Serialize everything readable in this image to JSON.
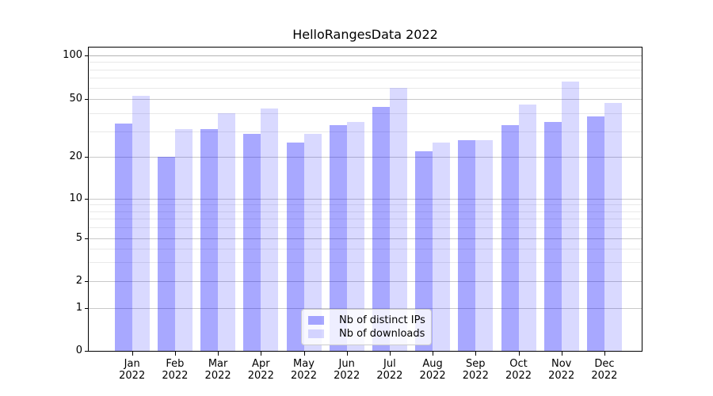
{
  "figure": {
    "title": "HelloRangesData 2022",
    "background_color": "#ffffff",
    "axis_color": "#000000"
  },
  "chart_data": {
    "type": "bar",
    "title": "HelloRangesData 2022",
    "xlabel": "",
    "ylabel": "",
    "categories": [
      "Jan",
      "Feb",
      "Mar",
      "Apr",
      "May",
      "Jun",
      "Jul",
      "Aug",
      "Sep",
      "Oct",
      "Nov",
      "Dec"
    ],
    "category_year": "2022",
    "series": [
      {
        "name": "Nb of distinct IPs",
        "color": "#0000ff",
        "alpha": 0.34,
        "composite_hex": "#a9a9ff",
        "values": [
          34,
          20,
          31,
          29,
          25,
          33,
          44,
          22,
          26,
          33,
          35,
          38
        ]
      },
      {
        "name": "Nb of downloads",
        "color": "#0000ff",
        "alpha": 0.15,
        "composite_hex": "#d9d9ff",
        "values": [
          53,
          31,
          40,
          43,
          29,
          35,
          60,
          25,
          26,
          46,
          66,
          47
        ]
      }
    ],
    "yscale": "log-like-with-zero-baseline",
    "ylim": [
      0,
      107
    ],
    "y_major_ticks": [
      0,
      1,
      2,
      5,
      10,
      20,
      50,
      100
    ],
    "y_minor_gridlines": [
      3,
      4,
      6,
      7,
      8,
      9,
      30,
      40,
      60,
      70,
      80,
      90
    ],
    "y_anchor_fractions": {
      "0": 1.0,
      "1": 0.8583,
      "2": 0.7714,
      "5": 0.628,
      "10": 0.4975,
      "20": 0.3608,
      "50": 0.1704,
      "100": 0.0261
    },
    "grid": true,
    "gridline_major_color": "#c9c9c9",
    "gridline_minor_color": "#e9e9e9",
    "gridline_top_color": "#b3b3b3",
    "legend": {
      "position": "lower center",
      "entries": [
        "Nb of distinct IPs",
        "Nb of downloads"
      ]
    }
  }
}
